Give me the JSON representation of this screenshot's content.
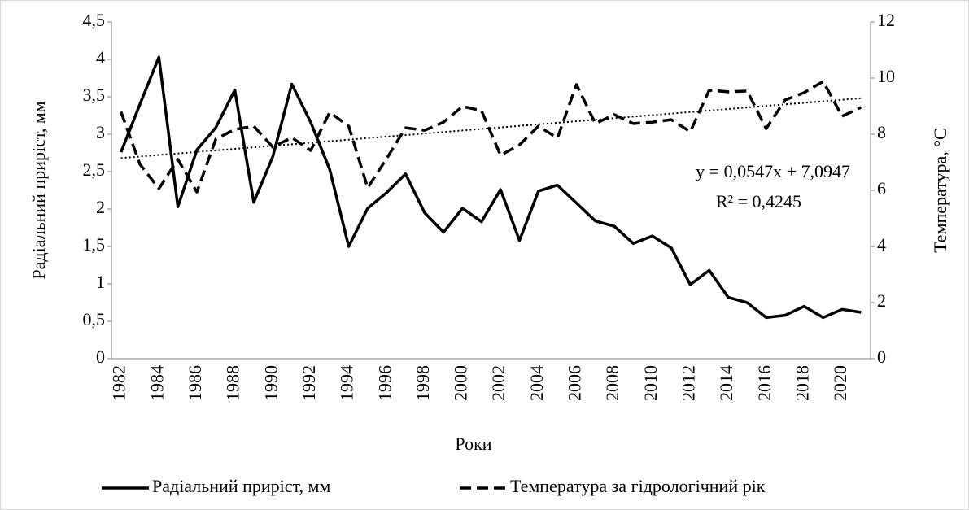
{
  "chart_data": {
    "type": "line",
    "categories": [
      "1982",
      null,
      "1984",
      null,
      "1986",
      null,
      "1988",
      null,
      "1990",
      null,
      "1992",
      null,
      "1994",
      null,
      "1996",
      null,
      "1998",
      null,
      "2000",
      null,
      "2002",
      null,
      "2004",
      null,
      "2006",
      null,
      "2008",
      null,
      "2010",
      null,
      "2012",
      null,
      "2014",
      null,
      "2016",
      null,
      "2018",
      null,
      "2020",
      null
    ],
    "x_label": "Роки",
    "y_label": "Радіальний приріст, мм",
    "y2_label": "Температура,  °C",
    "ylim": [
      0,
      4.5
    ],
    "yticks": [
      0,
      {
        "value": 0.5,
        "label": "0,5"
      },
      1,
      {
        "value": 1.5,
        "label": "1,5"
      },
      2,
      {
        "value": 2.5,
        "label": "2,5"
      },
      3,
      {
        "value": 3.5,
        "label": "3,5"
      },
      4,
      {
        "value": 4.5,
        "label": "4,5"
      }
    ],
    "y2lim": [
      0,
      12
    ],
    "y2ticks": [
      0,
      2,
      4,
      6,
      8,
      10,
      12
    ],
    "legend": "bottom",
    "series": [
      {
        "name": "Радіальний приріст, мм",
        "color": "#000000",
        "dash": "solid",
        "values": [
          2.76,
          3.4,
          4.03,
          2.03,
          2.79,
          3.09,
          3.59,
          2.09,
          2.7,
          3.67,
          3.16,
          2.53,
          1.5,
          2.01,
          2.22,
          2.47,
          1.95,
          1.69,
          2.01,
          1.83,
          2.26,
          1.58,
          2.24,
          2.32,
          2.08,
          1.84,
          1.77,
          1.54,
          1.64,
          1.48,
          0.99,
          1.18,
          0.82,
          0.75,
          0.55,
          0.58,
          0.7,
          0.55,
          0.66,
          0.62
        ]
      },
      {
        "name": "Температура за гідрологічний рік",
        "color": "#000000",
        "dash": "dashed",
        "axis": "y2",
        "values": [
          8.8,
          6.93,
          6.06,
          7.1,
          5.94,
          7.83,
          8.17,
          8.29,
          7.54,
          7.88,
          7.42,
          8.78,
          8.29,
          6.09,
          7.13,
          8.23,
          8.14,
          8.43,
          8.99,
          8.84,
          7.25,
          7.62,
          8.29,
          7.86,
          9.77,
          8.38,
          8.7,
          8.38,
          8.43,
          8.52,
          8.09,
          9.57,
          9.51,
          9.54,
          8.2,
          9.22,
          9.48,
          9.88,
          8.64,
          8.96
        ]
      }
    ],
    "trendline": {
      "series": 1,
      "slope": 0.0547,
      "intercept": 7.0947,
      "equation": "y = 0,0547x + 7,0947",
      "r_squared": "R² = 0,4245"
    }
  }
}
